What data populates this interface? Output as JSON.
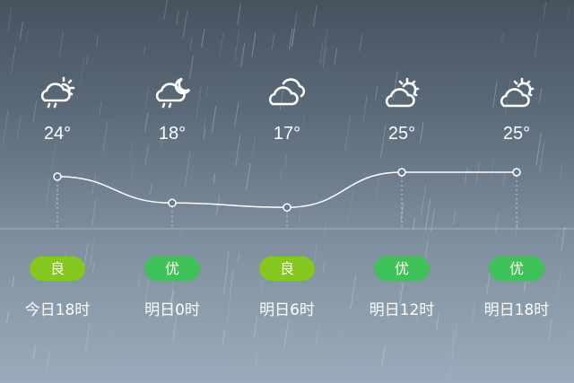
{
  "forecast": [
    {
      "icon": "cloudy-rain-sun-icon",
      "temp": "24°",
      "temp_value": 24,
      "aqi": "良",
      "aqi_color": "#84c71f",
      "time": "今日18时"
    },
    {
      "icon": "cloudy-rain-moon-icon",
      "temp": "18°",
      "temp_value": 18,
      "aqi": "优",
      "aqi_color": "#3fc15a",
      "time": "明日0时"
    },
    {
      "icon": "cloudy-icon",
      "temp": "17°",
      "temp_value": 17,
      "aqi": "良",
      "aqi_color": "#84c71f",
      "time": "明日6时"
    },
    {
      "icon": "partly-cloudy-sun-icon",
      "temp": "25°",
      "temp_value": 25,
      "aqi": "优",
      "aqi_color": "#3fc15a",
      "time": "明日12时"
    },
    {
      "icon": "partly-cloudy-sun-icon",
      "temp": "25°",
      "temp_value": 25,
      "aqi": "优",
      "aqi_color": "#3fc15a",
      "time": "明日18时"
    }
  ]
}
